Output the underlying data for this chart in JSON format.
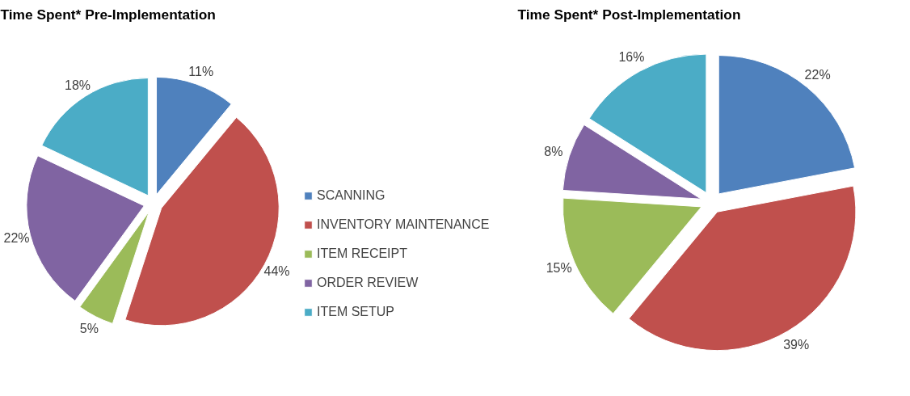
{
  "chart_data": [
    {
      "type": "pie",
      "title": "Time Spent* Pre-Implementation",
      "categories": [
        "SCANNING",
        "INVENTORY MAINTENANCE",
        "ITEM RECEIPT",
        "ORDER REVIEW",
        "ITEM SETUP"
      ],
      "values": [
        11,
        44,
        5,
        22,
        18
      ],
      "colors": [
        "#4f81bd",
        "#c0504d",
        "#9bbb59",
        "#8064a2",
        "#4bacc6"
      ],
      "value_labels": [
        "11%",
        "44%",
        "5%",
        "22%",
        "18%"
      ],
      "legend": "right"
    },
    {
      "type": "pie",
      "title": "Time Spent* Post-Implementation",
      "categories": [
        null,
        null,
        null,
        null,
        null
      ],
      "values": [
        22,
        39,
        15,
        8,
        16
      ],
      "colors": [
        "#4f81bd",
        "#c0504d",
        "#9bbb59",
        "#8064a2",
        "#4bacc6"
      ],
      "value_labels": [
        "22%",
        "39%",
        "15%",
        "8%",
        "16%"
      ]
    }
  ]
}
